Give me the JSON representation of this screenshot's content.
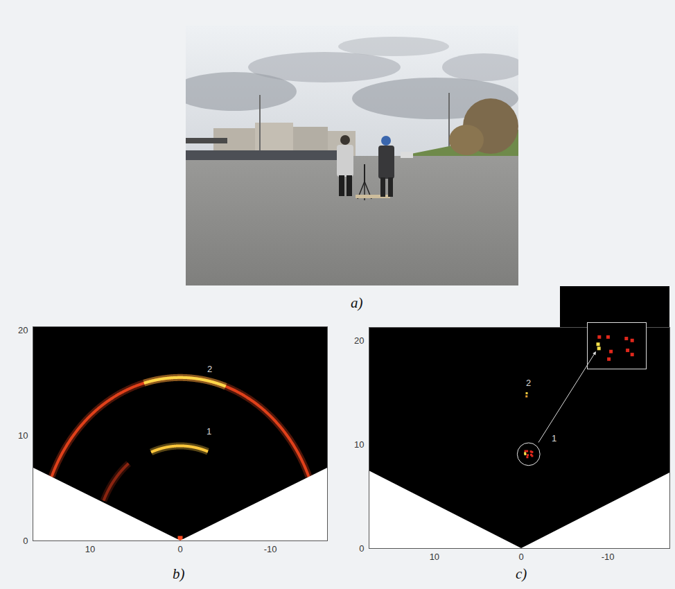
{
  "photo": {
    "label": "a)"
  },
  "chart_data": [
    {
      "panel_label": "b)",
      "type": "radar_image",
      "grid": false,
      "xlim": [
        16.3,
        -16.3
      ],
      "xticks": [
        10,
        0,
        -10
      ],
      "ylim": [
        0,
        20.3
      ],
      "yticks": [
        0,
        10,
        20
      ],
      "field_of_view_deg": 67,
      "arcs": [
        {
          "range": 15.5,
          "angle_from": -67,
          "angle_to": 67,
          "color": "#e0401a"
        },
        {
          "range": 15.5,
          "angle_from": -19,
          "angle_to": 15,
          "color": "#ffd84a"
        },
        {
          "range": 9,
          "angle_from": -20,
          "angle_to": 21,
          "color": "#ffc83c"
        },
        {
          "range": 9.3,
          "angle_from": 38,
          "angle_to": 66,
          "color": "#8a2410"
        }
      ],
      "points": [
        {
          "x": 0,
          "y": 0.2,
          "color": "#ff4a20"
        }
      ],
      "labels": [
        {
          "text": "2",
          "x": -3.3,
          "y": 16.3
        },
        {
          "text": "1",
          "x": -3.2,
          "y": 10.4
        }
      ]
    },
    {
      "panel_label": "c)",
      "type": "radar_image",
      "grid": false,
      "xlim": [
        17.5,
        -17.1
      ],
      "xticks": [
        10,
        0,
        -10
      ],
      "ylim": [
        0,
        21.2
      ],
      "yticks": [
        0,
        10,
        20
      ],
      "field_of_view_deg": 67,
      "arcs": [],
      "points": [
        {
          "x": -0.64,
          "y": 14.9,
          "color": "#f5d040"
        },
        {
          "x": -0.62,
          "y": 14.6,
          "color": "#e8a030"
        },
        {
          "x": -0.48,
          "y": 9.33,
          "color": "#e0281c"
        },
        {
          "x": -0.69,
          "y": 9.33,
          "color": "#e0281c"
        },
        {
          "x": -1.13,
          "y": 9.29,
          "color": "#e0281c"
        },
        {
          "x": -1.27,
          "y": 9.24,
          "color": "#e0281c"
        },
        {
          "x": -1.16,
          "y": 8.98,
          "color": "#e0281c"
        },
        {
          "x": -1.27,
          "y": 8.87,
          "color": "#e0281c"
        },
        {
          "x": -0.76,
          "y": 8.95,
          "color": "#e0281c"
        },
        {
          "x": -0.71,
          "y": 8.75,
          "color": "#e0281c"
        },
        {
          "x": -0.45,
          "y": 9.14,
          "color": "#f5e04a"
        },
        {
          "x": -0.47,
          "y": 9.03,
          "color": "#f5e04a"
        }
      ],
      "labels": [
        {
          "text": "2",
          "x": -0.8,
          "y": 15.9
        },
        {
          "text": "1",
          "x": -3.8,
          "y": 10.6
        }
      ],
      "inset": {
        "xlim": [
          -0.2,
          -1.6
        ],
        "ylim": [
          8.5,
          9.7
        ],
        "tick_labels": false
      }
    }
  ]
}
